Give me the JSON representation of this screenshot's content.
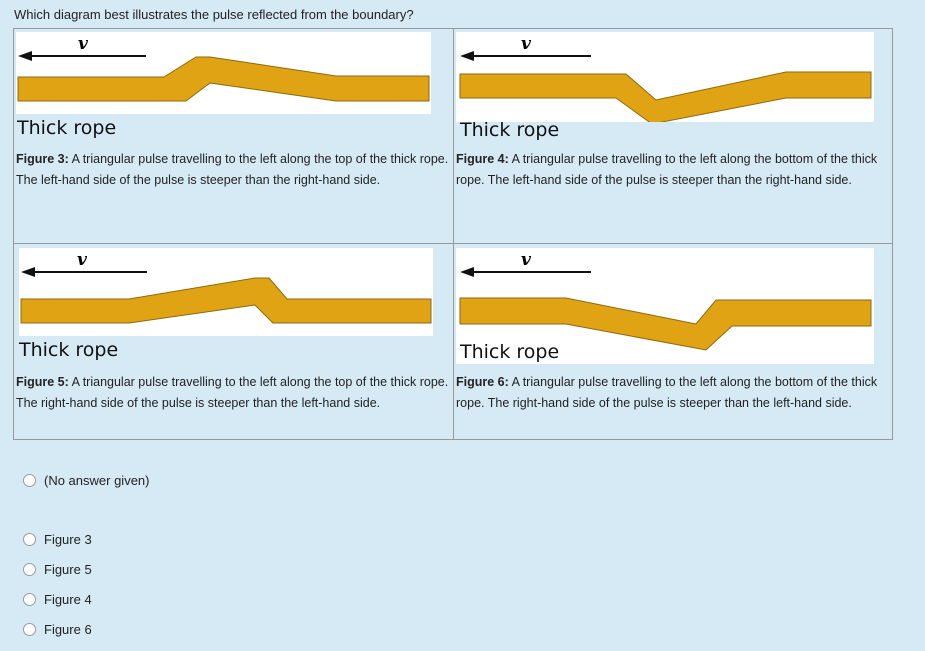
{
  "question": "Which diagram best illustrates the pulse reflected from the boundary?",
  "figures": [
    {
      "v_label": "v",
      "rope_label": "Thick rope",
      "title": "Figure 3:",
      "text": "A triangular pulse travelling to the left along the top of the thick rope. The left-hand side of the pulse is steeper than the right-hand side."
    },
    {
      "v_label": "v",
      "rope_label": "Thick rope",
      "title": "Figure 4:",
      "text": "A triangular pulse travelling to the left along the bottom of the thick rope. The left-hand side of the pulse is steeper than the right-hand side."
    },
    {
      "v_label": "v",
      "rope_label": "Thick rope",
      "title": "Figure 5:",
      "text": "A triangular pulse travelling to the left along the top of the thick rope. The right-hand side of the pulse is steeper than the left-hand side."
    },
    {
      "v_label": "v",
      "rope_label": "Thick rope",
      "title": "Figure 6:",
      "text": "A triangular pulse travelling to the left along the bottom of the thick rope. The right-hand side of the pulse is steeper than the left-hand side."
    }
  ],
  "options": [
    {
      "label": "(No answer given)"
    },
    {
      "label": "Figure 3"
    },
    {
      "label": "Figure 5"
    },
    {
      "label": "Figure 4"
    },
    {
      "label": "Figure 6"
    }
  ],
  "colors": {
    "rope_fill": "#e0a314",
    "rope_stroke": "#8a6a10",
    "page_bg": "#d6eaf6"
  }
}
